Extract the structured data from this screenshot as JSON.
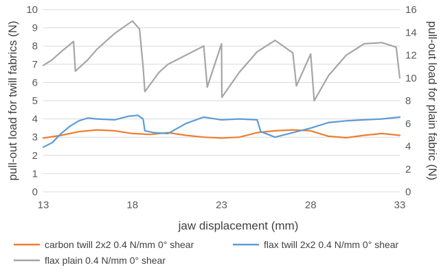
{
  "chart_data": {
    "type": "line",
    "xlabel": "jaw displacement (mm)",
    "ylabel": "pull-out load for twill fabrics (N)",
    "y2label": "pull-out load for plain fabric (N)",
    "xlim": [
      13,
      33
    ],
    "ylim": [
      0,
      10
    ],
    "y2lim": [
      0,
      16
    ],
    "x_ticks": [
      13,
      18,
      23,
      28,
      33
    ],
    "y_ticks": [
      0,
      1,
      2,
      3,
      4,
      5,
      6,
      7,
      8,
      9,
      10
    ],
    "y2_ticks": [
      0,
      2,
      4,
      6,
      8,
      10,
      12,
      14,
      16
    ],
    "grid": "horizontal",
    "legend_position": "bottom",
    "series": [
      {
        "name": "carbon twill 2x2 0.4 N/mm 0° shear",
        "axis": "left",
        "color": "#ed7d31",
        "x": [
          13,
          14,
          15,
          16,
          17,
          18,
          19,
          20,
          21,
          22,
          23,
          24,
          25,
          26,
          27,
          28,
          29,
          30,
          31,
          32,
          33
        ],
        "y": [
          2.95,
          3.1,
          3.3,
          3.4,
          3.35,
          3.2,
          3.15,
          3.25,
          3.1,
          3.0,
          2.95,
          3.0,
          3.25,
          3.35,
          3.4,
          3.35,
          3.05,
          2.97,
          3.1,
          3.2,
          3.1
        ]
      },
      {
        "name": "flax twill 2x2 0.4 N/mm 0° shear",
        "axis": "left",
        "color": "#5b9bd5",
        "x": [
          13,
          13.5,
          14,
          14.5,
          15,
          15.5,
          16,
          17,
          17.8,
          18.3,
          18.6,
          18.7,
          19.2,
          20,
          21,
          22,
          23,
          24,
          25,
          25.2,
          26,
          27,
          28,
          29,
          30,
          31,
          32,
          33
        ],
        "y": [
          2.45,
          2.7,
          3.2,
          3.6,
          3.9,
          4.05,
          4.0,
          3.95,
          4.15,
          4.2,
          4.0,
          3.35,
          3.25,
          3.2,
          3.75,
          4.1,
          3.95,
          4.0,
          3.95,
          3.3,
          3.0,
          3.25,
          3.5,
          3.8,
          3.9,
          3.95,
          4.0,
          4.1
        ]
      },
      {
        "name": "flax plain 0.4 N/mm 0° shear",
        "axis": "right",
        "color": "#a5a5a5",
        "x": [
          13,
          13.5,
          14,
          14.7,
          14.8,
          15.5,
          16,
          17,
          18,
          18.4,
          18.6,
          18.7,
          19.5,
          20,
          21,
          22,
          22.2,
          23,
          23.02,
          24,
          25,
          26,
          27,
          27.2,
          28,
          28.2,
          29,
          30,
          31,
          32,
          32.8,
          33
        ],
        "y": [
          11.1,
          11.6,
          12.3,
          13.2,
          10.6,
          11.6,
          12.5,
          13.9,
          15.0,
          14.3,
          11.0,
          8.8,
          10.5,
          11.2,
          12.0,
          12.8,
          9.2,
          13.0,
          8.3,
          10.5,
          12.3,
          13.3,
          12.2,
          9.3,
          12.1,
          8.0,
          10.2,
          12.0,
          13.0,
          13.1,
          12.7,
          10.0
        ]
      }
    ]
  }
}
